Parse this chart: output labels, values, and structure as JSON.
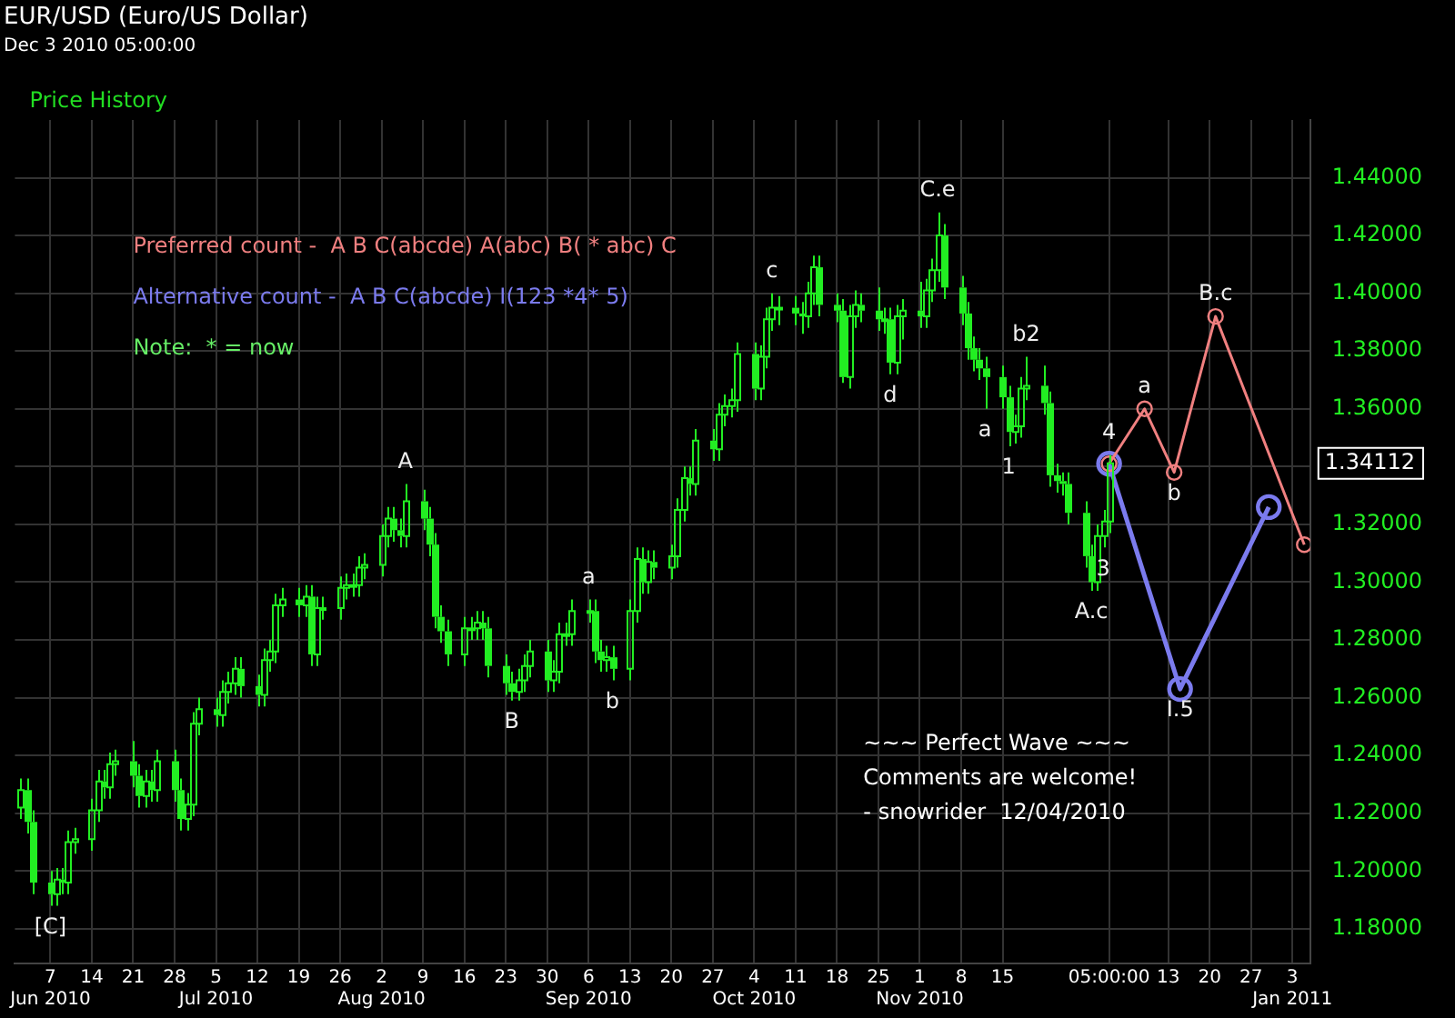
{
  "chart_data": {
    "type": "candlestick",
    "title": "EUR/USD (Euro/US Dollar)",
    "subtitle": "Dec 3 2010 05:00:00",
    "color": "#22ee22",
    "x": [
      "2010-06-02",
      "2010-06-03",
      "2010-06-04",
      "2010-06-07",
      "2010-06-08",
      "2010-06-09",
      "2010-06-10",
      "2010-06-11",
      "2010-06-14",
      "2010-06-15",
      "2010-06-16",
      "2010-06-17",
      "2010-06-18",
      "2010-06-21",
      "2010-06-22",
      "2010-06-23",
      "2010-06-24",
      "2010-06-25",
      "2010-06-28",
      "2010-06-29",
      "2010-06-30",
      "2010-07-01",
      "2010-07-02",
      "2010-07-05",
      "2010-07-06",
      "2010-07-07",
      "2010-07-08",
      "2010-07-09",
      "2010-07-12",
      "2010-07-13",
      "2010-07-14",
      "2010-07-15",
      "2010-07-16",
      "2010-07-19",
      "2010-07-20",
      "2010-07-21",
      "2010-07-22",
      "2010-07-23",
      "2010-07-26",
      "2010-07-27",
      "2010-07-28",
      "2010-07-29",
      "2010-07-30",
      "2010-08-02",
      "2010-08-03",
      "2010-08-04",
      "2010-08-05",
      "2010-08-06",
      "2010-08-09",
      "2010-08-10",
      "2010-08-11",
      "2010-08-12",
      "2010-08-13",
      "2010-08-16",
      "2010-08-17",
      "2010-08-18",
      "2010-08-19",
      "2010-08-20",
      "2010-08-23",
      "2010-08-24",
      "2010-08-25",
      "2010-08-26",
      "2010-08-27",
      "2010-08-30",
      "2010-08-31",
      "2010-09-01",
      "2010-09-02",
      "2010-09-03",
      "2010-09-06",
      "2010-09-07",
      "2010-09-08",
      "2010-09-09",
      "2010-09-10",
      "2010-09-13",
      "2010-09-14",
      "2010-09-15",
      "2010-09-16",
      "2010-09-17",
      "2010-09-20",
      "2010-09-21",
      "2010-09-22",
      "2010-09-23",
      "2010-09-24",
      "2010-09-27",
      "2010-09-28",
      "2010-09-29",
      "2010-09-30",
      "2010-10-01",
      "2010-10-04",
      "2010-10-05",
      "2010-10-06",
      "2010-10-07",
      "2010-10-08",
      "2010-10-11",
      "2010-10-12",
      "2010-10-13",
      "2010-10-14",
      "2010-10-15",
      "2010-10-18",
      "2010-10-19",
      "2010-10-20",
      "2010-10-21",
      "2010-10-22",
      "2010-10-25",
      "2010-10-26",
      "2010-10-27",
      "2010-10-28",
      "2010-10-29",
      "2010-11-01",
      "2010-11-02",
      "2010-11-03",
      "2010-11-04",
      "2010-11-05",
      "2010-11-08",
      "2010-11-09",
      "2010-11-10",
      "2010-11-11",
      "2010-11-12",
      "2010-11-15",
      "2010-11-16",
      "2010-11-17",
      "2010-11-18",
      "2010-11-19",
      "2010-11-22",
      "2010-11-23",
      "2010-11-24",
      "2010-11-25",
      "2010-11-26",
      "2010-11-29",
      "2010-11-30",
      "2010-12-01",
      "2010-12-02",
      "2010-12-03"
    ],
    "ohlc": [
      [
        1.222,
        1.232,
        1.218,
        1.228
      ],
      [
        1.228,
        1.232,
        1.213,
        1.217
      ],
      [
        1.217,
        1.221,
        1.192,
        1.196
      ],
      [
        1.196,
        1.2,
        1.188,
        1.192
      ],
      [
        1.192,
        1.201,
        1.188,
        1.197
      ],
      [
        1.197,
        1.201,
        1.192,
        1.196
      ],
      [
        1.196,
        1.214,
        1.192,
        1.21
      ],
      [
        1.21,
        1.215,
        1.206,
        1.211
      ],
      [
        1.211,
        1.225,
        1.207,
        1.221
      ],
      [
        1.221,
        1.235,
        1.217,
        1.231
      ],
      [
        1.231,
        1.235,
        1.225,
        1.229
      ],
      [
        1.229,
        1.241,
        1.225,
        1.237
      ],
      [
        1.237,
        1.242,
        1.233,
        1.238
      ],
      [
        1.238,
        1.245,
        1.229,
        1.233
      ],
      [
        1.233,
        1.237,
        1.222,
        1.226
      ],
      [
        1.226,
        1.235,
        1.222,
        1.231
      ],
      [
        1.231,
        1.235,
        1.224,
        1.228
      ],
      [
        1.228,
        1.242,
        1.224,
        1.238
      ],
      [
        1.238,
        1.242,
        1.224,
        1.228
      ],
      [
        1.228,
        1.232,
        1.214,
        1.218
      ],
      [
        1.218,
        1.227,
        1.214,
        1.223
      ],
      [
        1.223,
        1.255,
        1.219,
        1.251
      ],
      [
        1.251,
        1.26,
        1.247,
        1.256
      ],
      [
        1.256,
        1.26,
        1.25,
        1.254
      ],
      [
        1.254,
        1.266,
        1.25,
        1.262
      ],
      [
        1.262,
        1.269,
        1.258,
        1.265
      ],
      [
        1.265,
        1.274,
        1.261,
        1.27
      ],
      [
        1.27,
        1.274,
        1.26,
        1.264
      ],
      [
        1.264,
        1.268,
        1.257,
        1.261
      ],
      [
        1.261,
        1.277,
        1.257,
        1.273
      ],
      [
        1.273,
        1.28,
        1.269,
        1.276
      ],
      [
        1.276,
        1.296,
        1.272,
        1.292
      ],
      [
        1.292,
        1.298,
        1.288,
        1.294
      ],
      [
        1.294,
        1.298,
        1.288,
        1.292
      ],
      [
        1.292,
        1.299,
        1.288,
        1.295
      ],
      [
        1.295,
        1.299,
        1.271,
        1.275
      ],
      [
        1.275,
        1.295,
        1.271,
        1.291
      ],
      [
        1.291,
        1.295,
        1.287,
        1.291
      ],
      [
        1.291,
        1.302,
        1.287,
        1.298
      ],
      [
        1.298,
        1.303,
        1.294,
        1.299
      ],
      [
        1.299,
        1.303,
        1.295,
        1.299
      ],
      [
        1.299,
        1.309,
        1.295,
        1.305
      ],
      [
        1.305,
        1.31,
        1.301,
        1.306
      ],
      [
        1.306,
        1.32,
        1.302,
        1.316
      ],
      [
        1.316,
        1.326,
        1.312,
        1.322
      ],
      [
        1.322,
        1.326,
        1.314,
        1.318
      ],
      [
        1.318,
        1.322,
        1.312,
        1.316
      ],
      [
        1.316,
        1.334,
        1.312,
        1.328
      ],
      [
        1.328,
        1.332,
        1.318,
        1.322
      ],
      [
        1.322,
        1.326,
        1.309,
        1.313
      ],
      [
        1.313,
        1.317,
        1.284,
        1.288
      ],
      [
        1.288,
        1.292,
        1.279,
        1.283
      ],
      [
        1.283,
        1.287,
        1.271,
        1.275
      ],
      [
        1.275,
        1.288,
        1.271,
        1.284
      ],
      [
        1.284,
        1.288,
        1.28,
        1.284
      ],
      [
        1.284,
        1.29,
        1.28,
        1.286
      ],
      [
        1.286,
        1.29,
        1.28,
        1.284
      ],
      [
        1.284,
        1.288,
        1.267,
        1.271
      ],
      [
        1.271,
        1.275,
        1.261,
        1.265
      ],
      [
        1.265,
        1.269,
        1.259,
        1.262
      ],
      [
        1.262,
        1.27,
        1.259,
        1.266
      ],
      [
        1.266,
        1.275,
        1.262,
        1.271
      ],
      [
        1.271,
        1.28,
        1.267,
        1.276
      ],
      [
        1.276,
        1.28,
        1.262,
        1.266
      ],
      [
        1.266,
        1.273,
        1.262,
        1.269
      ],
      [
        1.269,
        1.286,
        1.265,
        1.282
      ],
      [
        1.282,
        1.286,
        1.278,
        1.282
      ],
      [
        1.282,
        1.294,
        1.278,
        1.29
      ],
      [
        1.29,
        1.294,
        1.286,
        1.29
      ],
      [
        1.29,
        1.294,
        1.272,
        1.276
      ],
      [
        1.276,
        1.28,
        1.269,
        1.273
      ],
      [
        1.273,
        1.278,
        1.269,
        1.274
      ],
      [
        1.274,
        1.278,
        1.266,
        1.27
      ],
      [
        1.27,
        1.294,
        1.266,
        1.29
      ],
      [
        1.29,
        1.312,
        1.286,
        1.308
      ],
      [
        1.308,
        1.312,
        1.296,
        1.3
      ],
      [
        1.3,
        1.311,
        1.296,
        1.307
      ],
      [
        1.307,
        1.311,
        1.301,
        1.305
      ],
      [
        1.305,
        1.313,
        1.301,
        1.309
      ],
      [
        1.309,
        1.329,
        1.305,
        1.325
      ],
      [
        1.325,
        1.34,
        1.321,
        1.336
      ],
      [
        1.336,
        1.34,
        1.33,
        1.334
      ],
      [
        1.334,
        1.353,
        1.33,
        1.349
      ],
      [
        1.349,
        1.353,
        1.342,
        1.346
      ],
      [
        1.346,
        1.362,
        1.342,
        1.358
      ],
      [
        1.358,
        1.365,
        1.354,
        1.361
      ],
      [
        1.361,
        1.367,
        1.357,
        1.363
      ],
      [
        1.363,
        1.383,
        1.359,
        1.379
      ],
      [
        1.379,
        1.383,
        1.363,
        1.367
      ],
      [
        1.367,
        1.382,
        1.363,
        1.378
      ],
      [
        1.378,
        1.395,
        1.374,
        1.391
      ],
      [
        1.391,
        1.4,
        1.387,
        1.395
      ],
      [
        1.395,
        1.399,
        1.389,
        1.395
      ],
      [
        1.395,
        1.399,
        1.389,
        1.393
      ],
      [
        1.393,
        1.397,
        1.386,
        1.392
      ],
      [
        1.392,
        1.404,
        1.388,
        1.4
      ],
      [
        1.4,
        1.413,
        1.396,
        1.409
      ],
      [
        1.409,
        1.413,
        1.392,
        1.396
      ],
      [
        1.396,
        1.4,
        1.39,
        1.394
      ],
      [
        1.394,
        1.398,
        1.369,
        1.371
      ],
      [
        1.371,
        1.396,
        1.367,
        1.392
      ],
      [
        1.392,
        1.401,
        1.388,
        1.396
      ],
      [
        1.396,
        1.4,
        1.39,
        1.394
      ],
      [
        1.394,
        1.402,
        1.387,
        1.391
      ],
      [
        1.391,
        1.395,
        1.386,
        1.391
      ],
      [
        1.391,
        1.395,
        1.372,
        1.376
      ],
      [
        1.376,
        1.396,
        1.372,
        1.392
      ],
      [
        1.392,
        1.398,
        1.384,
        1.394
      ],
      [
        1.394,
        1.404,
        1.388,
        1.392
      ],
      [
        1.392,
        1.405,
        1.388,
        1.401
      ],
      [
        1.401,
        1.412,
        1.397,
        1.408
      ],
      [
        1.408,
        1.428,
        1.404,
        1.42
      ],
      [
        1.42,
        1.424,
        1.398,
        1.402
      ],
      [
        1.402,
        1.406,
        1.389,
        1.393
      ],
      [
        1.393,
        1.397,
        1.377,
        1.381
      ],
      [
        1.381,
        1.385,
        1.373,
        1.377
      ],
      [
        1.377,
        1.381,
        1.37,
        1.374
      ],
      [
        1.374,
        1.378,
        1.36,
        1.371
      ],
      [
        1.371,
        1.375,
        1.36,
        1.364
      ],
      [
        1.364,
        1.368,
        1.347,
        1.352
      ],
      [
        1.352,
        1.358,
        1.348,
        1.354
      ],
      [
        1.354,
        1.371,
        1.35,
        1.367
      ],
      [
        1.367,
        1.378,
        1.363,
        1.368
      ],
      [
        1.368,
        1.375,
        1.358,
        1.362
      ],
      [
        1.362,
        1.366,
        1.333,
        1.337
      ],
      [
        1.337,
        1.341,
        1.331,
        1.335
      ],
      [
        1.335,
        1.338,
        1.33,
        1.334
      ],
      [
        1.334,
        1.338,
        1.32,
        1.324
      ],
      [
        1.324,
        1.328,
        1.305,
        1.309
      ],
      [
        1.309,
        1.313,
        1.297,
        1.3
      ],
      [
        1.3,
        1.32,
        1.297,
        1.316
      ],
      [
        1.316,
        1.325,
        1.312,
        1.321
      ],
      [
        1.321,
        1.344,
        1.317,
        1.34112
      ]
    ],
    "series": [
      {
        "type": "line",
        "name": "Preferred count -  A B C(abcde) A(abc) B( * abc) C",
        "color": "#f08080",
        "x": [
          "2010-12-03",
          "2010-12-09",
          "2010-12-14",
          "2010-12-21",
          "2011-01-05"
        ],
        "values": [
          1.341,
          1.36,
          1.338,
          1.392,
          1.313
        ]
      },
      {
        "type": "line",
        "name": "Alternative count -  A B C(abcde) I(123 *4* 5)",
        "color": "#7b7bee",
        "x": [
          "2010-12-03",
          "2010-12-15",
          "2010-12-30"
        ],
        "values": [
          1.341,
          1.263,
          1.326
        ]
      }
    ],
    "xlim": [
      "2010-06-01",
      "2011-01-06"
    ],
    "xticks": [
      {
        "value": "2010-06-07",
        "label": "7\nJun 2010"
      },
      {
        "value": "2010-06-14",
        "label": "14"
      },
      {
        "value": "2010-06-21",
        "label": "21"
      },
      {
        "value": "2010-06-28",
        "label": "28"
      },
      {
        "value": "2010-07-05",
        "label": "5\nJul 2010"
      },
      {
        "value": "2010-07-12",
        "label": "12"
      },
      {
        "value": "2010-07-19",
        "label": "19"
      },
      {
        "value": "2010-07-26",
        "label": "26"
      },
      {
        "value": "2010-08-02",
        "label": "2\nAug 2010"
      },
      {
        "value": "2010-08-09",
        "label": "9"
      },
      {
        "value": "2010-08-16",
        "label": "16"
      },
      {
        "value": "2010-08-23",
        "label": "23"
      },
      {
        "value": "2010-08-30",
        "label": "30"
      },
      {
        "value": "2010-09-06",
        "label": "6\nSep 2010"
      },
      {
        "value": "2010-09-13",
        "label": "13"
      },
      {
        "value": "2010-09-20",
        "label": "20"
      },
      {
        "value": "2010-09-27",
        "label": "27"
      },
      {
        "value": "2010-10-04",
        "label": "4\nOct 2010"
      },
      {
        "value": "2010-10-11",
        "label": "11"
      },
      {
        "value": "2010-10-18",
        "label": "18"
      },
      {
        "value": "2010-10-25",
        "label": "25"
      },
      {
        "value": "2010-11-01",
        "label": "1\nNov 2010"
      },
      {
        "value": "2010-11-08",
        "label": "8"
      },
      {
        "value": "2010-11-15",
        "label": "15"
      },
      {
        "value": "2010-12-03",
        "label": "05:00:00"
      },
      {
        "value": "2010-12-13",
        "label": "13"
      },
      {
        "value": "2010-12-20",
        "label": "20"
      },
      {
        "value": "2010-12-27",
        "label": "27"
      },
      {
        "value": "2011-01-03",
        "label": "3\nJan 2011"
      }
    ],
    "ylim": [
      1.168,
      1.46
    ],
    "yticks": [
      {
        "value": 1.18,
        "label": "1.18000"
      },
      {
        "value": 1.2,
        "label": "1.20000"
      },
      {
        "value": 1.22,
        "label": "1.22000"
      },
      {
        "value": 1.24,
        "label": "1.24000"
      },
      {
        "value": 1.26,
        "label": "1.26000"
      },
      {
        "value": 1.28,
        "label": "1.28000"
      },
      {
        "value": 1.3,
        "label": "1.30000"
      },
      {
        "value": 1.32,
        "label": "1.32000"
      },
      {
        "value": 1.34,
        "label": null
      },
      {
        "value": 1.36,
        "label": "1.36000"
      },
      {
        "value": 1.38,
        "label": "1.38000"
      },
      {
        "value": 1.4,
        "label": "1.40000"
      },
      {
        "value": 1.42,
        "label": "1.42000"
      },
      {
        "value": 1.44,
        "label": "1.44000"
      }
    ],
    "grid": true,
    "legend": "top left",
    "marker": "circle",
    "annotations": [
      "Price History",
      "Note:  * = now",
      "1.34112",
      "~~~ Perfect Wave ~~~",
      "Comments are welcome!",
      "- snowrider  12/04/2010",
      {
        "text": "[C]",
        "x": "2010-06-07",
        "y": 1.188
      },
      {
        "text": "A",
        "x": "2010-08-06",
        "y": 1.334
      },
      {
        "text": "B",
        "x": "2010-08-24",
        "y": 1.259
      },
      {
        "text": "a",
        "x": "2010-09-06",
        "y": 1.294
      },
      {
        "text": "b",
        "x": "2010-09-10",
        "y": 1.266
      },
      {
        "text": "c",
        "x": "2010-10-07",
        "y": 1.4
      },
      {
        "text": "d",
        "x": "2010-10-27",
        "y": 1.372
      },
      {
        "text": "C.e",
        "x": "2010-11-04",
        "y": 1.428
      },
      {
        "text": "a",
        "x": "2010-11-12",
        "y": 1.36
      },
      {
        "text": "1",
        "x": "2010-11-16",
        "y": 1.347
      },
      {
        "text": "b2",
        "x": "2010-11-19",
        "y": 1.378
      },
      {
        "text": "4",
        "x": "2010-12-03",
        "y": 1.344
      },
      {
        "text": "A.c",
        "x": "2010-11-30",
        "y": 1.297
      },
      {
        "text": "3",
        "x": "2010-12-02",
        "y": 1.312
      },
      {
        "text": "a",
        "x": "2010-12-09",
        "y": 1.36
      },
      {
        "text": "b",
        "x": "2010-12-14",
        "y": 1.338
      },
      {
        "text": "B.c",
        "x": "2010-12-21",
        "y": 1.392
      },
      {
        "text": "I.5",
        "x": "2010-12-15",
        "y": 1.263
      }
    ]
  }
}
